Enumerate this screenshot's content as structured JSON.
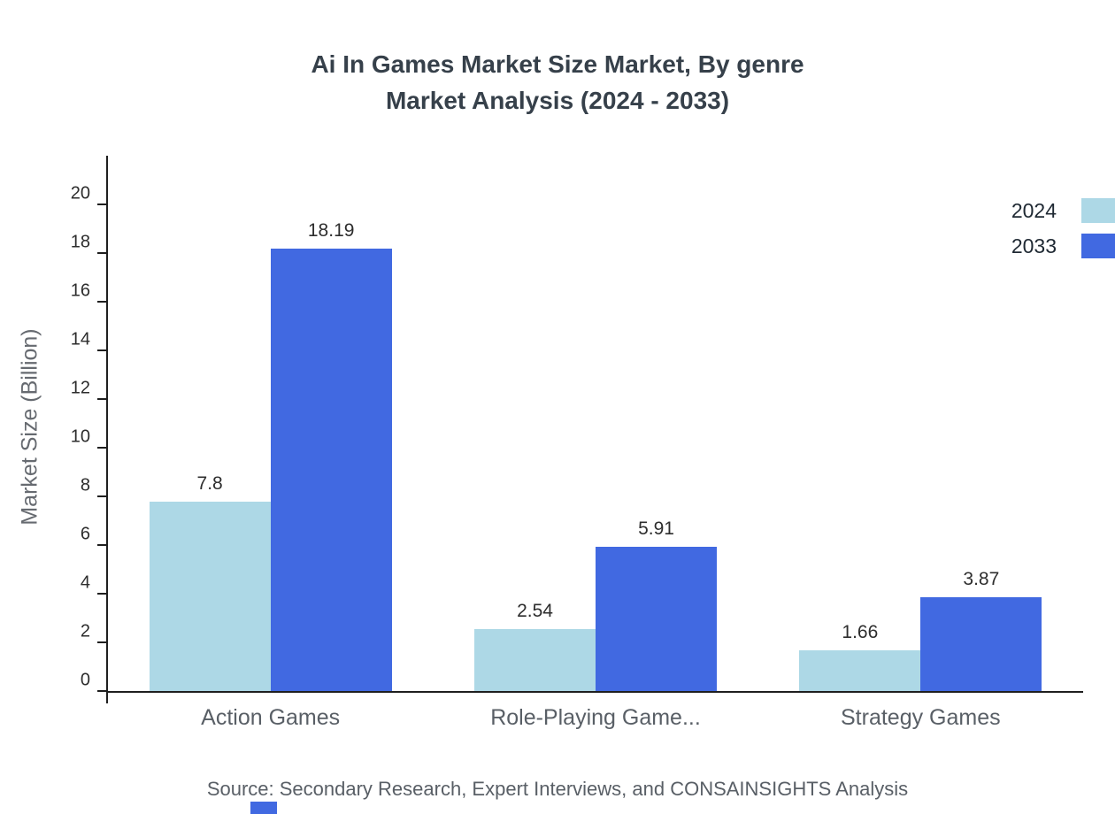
{
  "title": {
    "line1": "Ai In Games Market Size Market, By genre",
    "line2": "Market Analysis (2024 - 2033)"
  },
  "chart_data": {
    "type": "bar",
    "categories": [
      "Action Games",
      "Role-Playing Game...",
      "Strategy Games"
    ],
    "series": [
      {
        "name": "2024",
        "color": "#add8e6",
        "values": [
          7.8,
          2.54,
          1.66
        ]
      },
      {
        "name": "2033",
        "color": "#4169e1",
        "values": [
          18.19,
          5.91,
          3.87
        ]
      }
    ],
    "title": "Ai In Games Market Size Market, By genre Market Analysis (2024 - 2033)",
    "xlabel": "",
    "ylabel": "Market Size (Billion)",
    "ylim": [
      0,
      20
    ],
    "ytick_step": 2,
    "grid": false,
    "legend_position": "top-right",
    "value_labels": true
  },
  "source": "Source: Secondary Research, Expert Interviews, and CONSAINSIGHTS Analysis"
}
